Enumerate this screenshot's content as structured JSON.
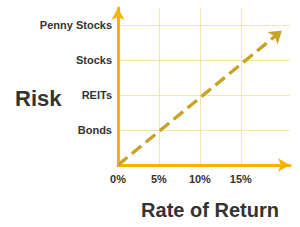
{
  "chart_data": {
    "type": "line",
    "x_label": "Rate of Return",
    "y_label": "Risk",
    "xlim": [
      0,
      21
    ],
    "xticks": [
      {
        "value": 0,
        "label": "0%"
      },
      {
        "value": 5,
        "label": "5%"
      },
      {
        "value": 10,
        "label": "10%"
      },
      {
        "value": 15,
        "label": "15%"
      }
    ],
    "ylim": [
      0,
      4.5
    ],
    "yticks": [
      {
        "value": 1,
        "label": "Bonds"
      },
      {
        "value": 2,
        "label": "REITs"
      },
      {
        "value": 3,
        "label": "Stocks"
      },
      {
        "value": 4,
        "label": "Penny Stocks"
      }
    ],
    "x": [
      0,
      20
    ],
    "values": [
      0,
      3.85
    ],
    "color": "#c9a227",
    "line_style": "dashed",
    "grid": true
  }
}
